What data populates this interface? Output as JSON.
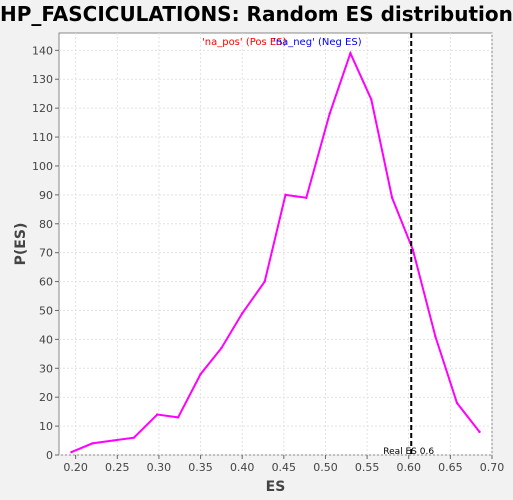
{
  "chart_data": {
    "type": "line",
    "title": "HP_FASCICULATIONS: Random ES distribution",
    "xlabel": "ES",
    "ylabel": "P(ES)",
    "xlim": [
      0.18,
      0.7
    ],
    "ylim": [
      0,
      146
    ],
    "x_ticks": [
      0.2,
      0.25,
      0.3,
      0.35,
      0.4,
      0.45,
      0.5,
      0.55,
      0.6,
      0.65,
      0.7
    ],
    "x_tick_labels": [
      "0.20",
      "0.25",
      "0.30",
      "0.35",
      "0.40",
      "0.45",
      "0.50",
      "0.55",
      "0.60",
      "0.65",
      "0.70"
    ],
    "y_ticks": [
      0,
      10,
      20,
      30,
      40,
      50,
      60,
      70,
      80,
      90,
      100,
      110,
      120,
      130,
      140
    ],
    "grid": true,
    "legend": {
      "placement": "top-center",
      "entries": [
        {
          "label": "'na_pos' (Pos ES)",
          "color": "#ff0000"
        },
        {
          "label": "'na_neg' (Neg ES)",
          "color": "#0000ff"
        }
      ]
    },
    "series": [
      {
        "color": "#ff00ff",
        "x": [
          0.195,
          0.22,
          0.245,
          0.27,
          0.298,
          0.323,
          0.35,
          0.375,
          0.4,
          0.427,
          0.452,
          0.477,
          0.505,
          0.53,
          0.555,
          0.58,
          0.605,
          0.632,
          0.658,
          0.685
        ],
        "y": [
          1,
          4,
          5,
          6,
          14,
          13,
          28,
          37,
          49,
          60,
          90,
          89,
          118,
          139,
          123,
          89,
          71,
          41,
          18,
          8
        ]
      }
    ],
    "reference_line": {
      "x": 0.603,
      "label": "Real ES 0.6",
      "style": "dashed",
      "color": "#000000"
    }
  }
}
